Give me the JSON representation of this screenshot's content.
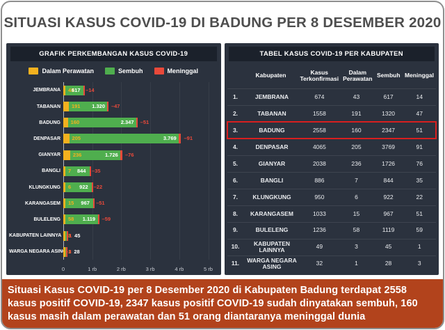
{
  "title": "SITUASI KASUS COVID-19 DI BADUNG PER 8 DESEMBER 2020",
  "colors": {
    "panel_bg": "#2b323e",
    "panel_header_bg": "#1b212b",
    "perawatan": "#f3b11f",
    "sembuh": "#4fae4e",
    "meninggal": "#e9493a",
    "caption_bg": "#b2431c",
    "highlight_border": "#d81f1f"
  },
  "chart_panel_header": "GRAFIK PERKEMBANGAN KASUS COVID-19",
  "chart_data": {
    "type": "bar",
    "orientation": "horizontal",
    "stacked": true,
    "title": "GRAFIK PERKEMBANGAN KASUS COVID-19",
    "categories": [
      "JEMBRANA",
      "TABANAN",
      "BADUNG",
      "DENPASAR",
      "GIANYAR",
      "BANGLI",
      "KLUNGKUNG",
      "KARANGASEM",
      "BULELENG",
      "KABUPATEN LAINNYA",
      "WARGA NEGARA ASING"
    ],
    "series": [
      {
        "name": "Dalam Perawatan",
        "color": "#f3b11f",
        "values": [
          43,
          191,
          160,
          205,
          236,
          7,
          6,
          15,
          58,
          3,
          1
        ],
        "labels": [
          "43",
          "191",
          "160",
          "205",
          "236",
          "7",
          "6",
          "15",
          "58",
          "3",
          "1"
        ]
      },
      {
        "name": "Sembuh",
        "color": "#4fae4e",
        "values": [
          617,
          1320,
          2347,
          3769,
          1726,
          844,
          922,
          967,
          1119,
          45,
          28
        ],
        "labels": [
          "617",
          "1.320",
          "2.347",
          "3.769",
          "1.726",
          "844",
          "922",
          "967",
          "1.119",
          "45",
          "28"
        ]
      },
      {
        "name": "Meninggal",
        "color": "#e9493a",
        "values": [
          14,
          47,
          51,
          91,
          76,
          35,
          22,
          51,
          59,
          1,
          3
        ],
        "labels": [
          "14",
          "47",
          "51",
          "91",
          "76",
          "35",
          "22",
          "51",
          "59",
          "1",
          "3"
        ]
      }
    ],
    "x_ticks": [
      "0",
      "1 rb",
      "2 rb",
      "3 rb",
      "4 rb",
      "5 rb"
    ],
    "xlim": [
      0,
      5000
    ],
    "legend_position": "top",
    "grid": true
  },
  "table": {
    "header": "TABEL KASUS COVID-19 PER KABUPATEN",
    "columns": [
      "Kabupaten",
      "Kasus Terkonfirmasi",
      "Dalam Perawatan",
      "Sembuh",
      "Meninggal"
    ],
    "rows": [
      {
        "no": "1.",
        "kabupaten": "JEMBRANA",
        "terkonfirmasi": "674",
        "perawatan": "43",
        "sembuh": "617",
        "meninggal": "14",
        "highlight": false
      },
      {
        "no": "2.",
        "kabupaten": "TABANAN",
        "terkonfirmasi": "1558",
        "perawatan": "191",
        "sembuh": "1320",
        "meninggal": "47",
        "highlight": false
      },
      {
        "no": "3.",
        "kabupaten": "BADUNG",
        "terkonfirmasi": "2558",
        "perawatan": "160",
        "sembuh": "2347",
        "meninggal": "51",
        "highlight": true
      },
      {
        "no": "4.",
        "kabupaten": "DENPASAR",
        "terkonfirmasi": "4065",
        "perawatan": "205",
        "sembuh": "3769",
        "meninggal": "91",
        "highlight": false
      },
      {
        "no": "5.",
        "kabupaten": "GIANYAR",
        "terkonfirmasi": "2038",
        "perawatan": "236",
        "sembuh": "1726",
        "meninggal": "76",
        "highlight": false
      },
      {
        "no": "6.",
        "kabupaten": "BANGLI",
        "terkonfirmasi": "886",
        "perawatan": "7",
        "sembuh": "844",
        "meninggal": "35",
        "highlight": false
      },
      {
        "no": "7.",
        "kabupaten": "KLUNGKUNG",
        "terkonfirmasi": "950",
        "perawatan": "6",
        "sembuh": "922",
        "meninggal": "22",
        "highlight": false
      },
      {
        "no": "8.",
        "kabupaten": "KARANGASEM",
        "terkonfirmasi": "1033",
        "perawatan": "15",
        "sembuh": "967",
        "meninggal": "51",
        "highlight": false
      },
      {
        "no": "9.",
        "kabupaten": "BULELENG",
        "terkonfirmasi": "1236",
        "perawatan": "58",
        "sembuh": "1119",
        "meninggal": "59",
        "highlight": false
      },
      {
        "no": "10.",
        "kabupaten": "KABUPATEN LAINNYA",
        "terkonfirmasi": "49",
        "perawatan": "3",
        "sembuh": "45",
        "meninggal": "1",
        "highlight": false
      },
      {
        "no": "11.",
        "kabupaten": "WARGA NEGARA ASING",
        "terkonfirmasi": "32",
        "perawatan": "1",
        "sembuh": "28",
        "meninggal": "3",
        "highlight": false
      }
    ]
  },
  "caption": "Situasi Kasus COVID-19 per 8 Desember 2020 di Kabupaten Badung terdapat 2558 kasus positif COVID-19, 2347 kasus positif COVID-19 sudah dinyatakan sembuh, 160 kasus masih dalam perawatan dan 51 orang diantaranya meninggal dunia"
}
